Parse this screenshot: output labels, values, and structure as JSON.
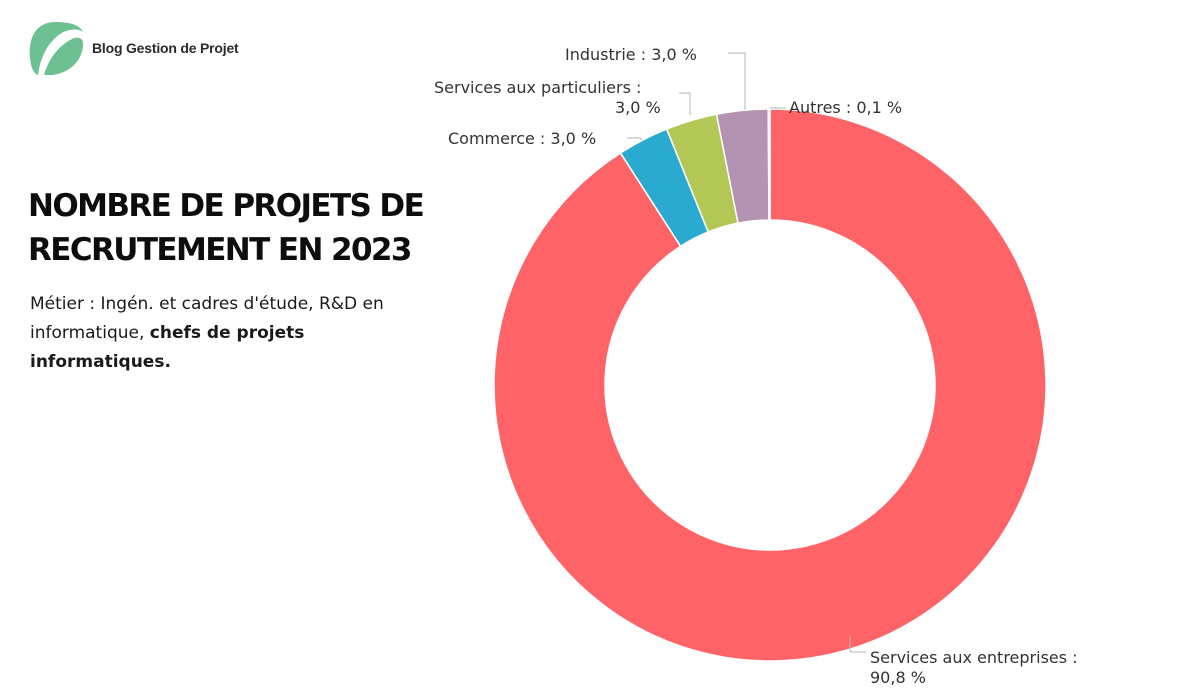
{
  "brand": {
    "name": "Blog Gestion de Projet",
    "logo_icon": "leaf-logo-icon",
    "logo_color": "#6dc091"
  },
  "title": {
    "line1": "NOMBRE DE PROJETS DE",
    "line2": "RECRUTEMENT EN 2023"
  },
  "subtitle": {
    "prefix": "Métier : Ingén. et cadres d'étude, R&D en informatique, ",
    "bold": "chefs de projets informatiques."
  },
  "chart_data": {
    "type": "pie",
    "style": "donut",
    "unit": "%",
    "start": "top",
    "direction": "clockwise",
    "slices": [
      {
        "name": "Services aux entreprises",
        "value": 90.8,
        "label": "Services aux entreprises :",
        "value_label": "90,8 %",
        "color": "#fe6368"
      },
      {
        "name": "Commerce",
        "value": 3.0,
        "label": "Commerce : 3,0 %",
        "color": "#2aaacf"
      },
      {
        "name": "Services aux particuliers",
        "value": 3.0,
        "label": "Services aux particuliers :",
        "value_label": "3,0 %",
        "color": "#b3c756"
      },
      {
        "name": "Industrie",
        "value": 3.0,
        "label": "Industrie : 3,0 %",
        "color": "#b393b1"
      },
      {
        "name": "Autres",
        "value": 0.1,
        "label": "Autres : 0,1 %",
        "color": "#f5a48a"
      }
    ]
  }
}
